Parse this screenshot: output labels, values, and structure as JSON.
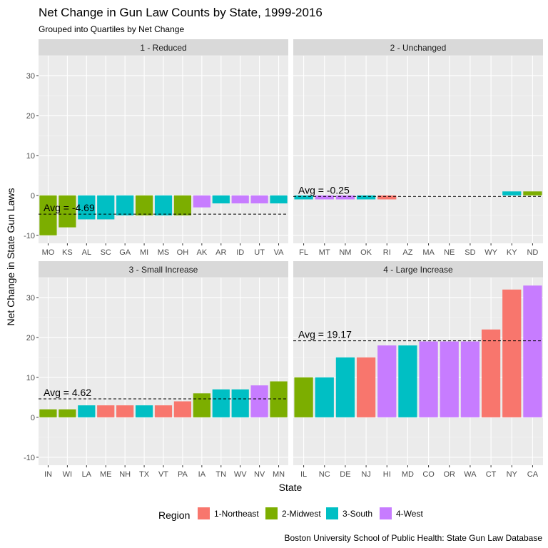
{
  "chart_data": {
    "type": "bar",
    "title": "Net Change in Gun Law Counts by State, 1999-2016",
    "subtitle": "Grouped into Quartiles by Net Change",
    "xlabel": "State",
    "ylabel": "Net Change in State Gun Laws",
    "ylim": [
      -12,
      35
    ],
    "y_ticks": [
      -10,
      0,
      10,
      20,
      30
    ],
    "grid": true,
    "legend": {
      "title": "Region",
      "position": "bottom",
      "entries": [
        {
          "key": "1",
          "label": "1-Northeast",
          "color": "#F8766D"
        },
        {
          "key": "2",
          "label": "2-Midwest",
          "color": "#7CAE00"
        },
        {
          "key": "3",
          "label": "3-South",
          "color": "#00BFC4"
        },
        {
          "key": "4",
          "label": "4-West",
          "color": "#C77CFF"
        }
      ]
    },
    "caption": "Boston University School of Public Health: State Gun Law Database",
    "facets": [
      {
        "label": "1 - Reduced",
        "avg": -4.69,
        "avg_label": "Avg =  -4.69",
        "categories": [
          "MO",
          "KS",
          "AL",
          "SC",
          "GA",
          "MI",
          "MS",
          "OH",
          "AK",
          "AR",
          "ID",
          "UT",
          "VA"
        ],
        "values": [
          -10,
          -8,
          -6,
          -6,
          -5,
          -5,
          -5,
          -5,
          -3,
          -2,
          -2,
          -2,
          -2
        ],
        "regions": [
          "2",
          "2",
          "3",
          "3",
          "3",
          "2",
          "3",
          "2",
          "4",
          "3",
          "4",
          "4",
          "3"
        ]
      },
      {
        "label": "2 - Unchanged",
        "avg": -0.25,
        "avg_label": "Avg =  -0.25",
        "categories": [
          "FL",
          "MT",
          "NM",
          "OK",
          "RI",
          "AZ",
          "MA",
          "NE",
          "SD",
          "WY",
          "KY",
          "ND"
        ],
        "values": [
          -1,
          -1,
          -1,
          -1,
          -1,
          0,
          0,
          0,
          0,
          0,
          1,
          1
        ],
        "regions": [
          "3",
          "4",
          "4",
          "3",
          "1",
          "4",
          "1",
          "2",
          "2",
          "4",
          "3",
          "2"
        ]
      },
      {
        "label": "3 - Small Increase",
        "avg": 4.62,
        "avg_label": "Avg =  4.62",
        "categories": [
          "IN",
          "WI",
          "LA",
          "ME",
          "NH",
          "TX",
          "VT",
          "PA",
          "IA",
          "TN",
          "WV",
          "NV",
          "MN"
        ],
        "values": [
          2,
          2,
          3,
          3,
          3,
          3,
          3,
          4,
          6,
          7,
          7,
          8,
          9
        ],
        "regions": [
          "2",
          "2",
          "3",
          "1",
          "1",
          "3",
          "1",
          "1",
          "2",
          "3",
          "3",
          "4",
          "2"
        ]
      },
      {
        "label": "4 - Large Increase",
        "avg": 19.17,
        "avg_label": "Avg =  19.17",
        "categories": [
          "IL",
          "NC",
          "DE",
          "NJ",
          "HI",
          "MD",
          "CO",
          "OR",
          "WA",
          "CT",
          "NY",
          "CA"
        ],
        "values": [
          10,
          10,
          15,
          15,
          18,
          18,
          19,
          19,
          19,
          22,
          32,
          33
        ],
        "regions": [
          "2",
          "3",
          "3",
          "1",
          "4",
          "3",
          "4",
          "4",
          "4",
          "1",
          "1",
          "4"
        ]
      }
    ]
  }
}
